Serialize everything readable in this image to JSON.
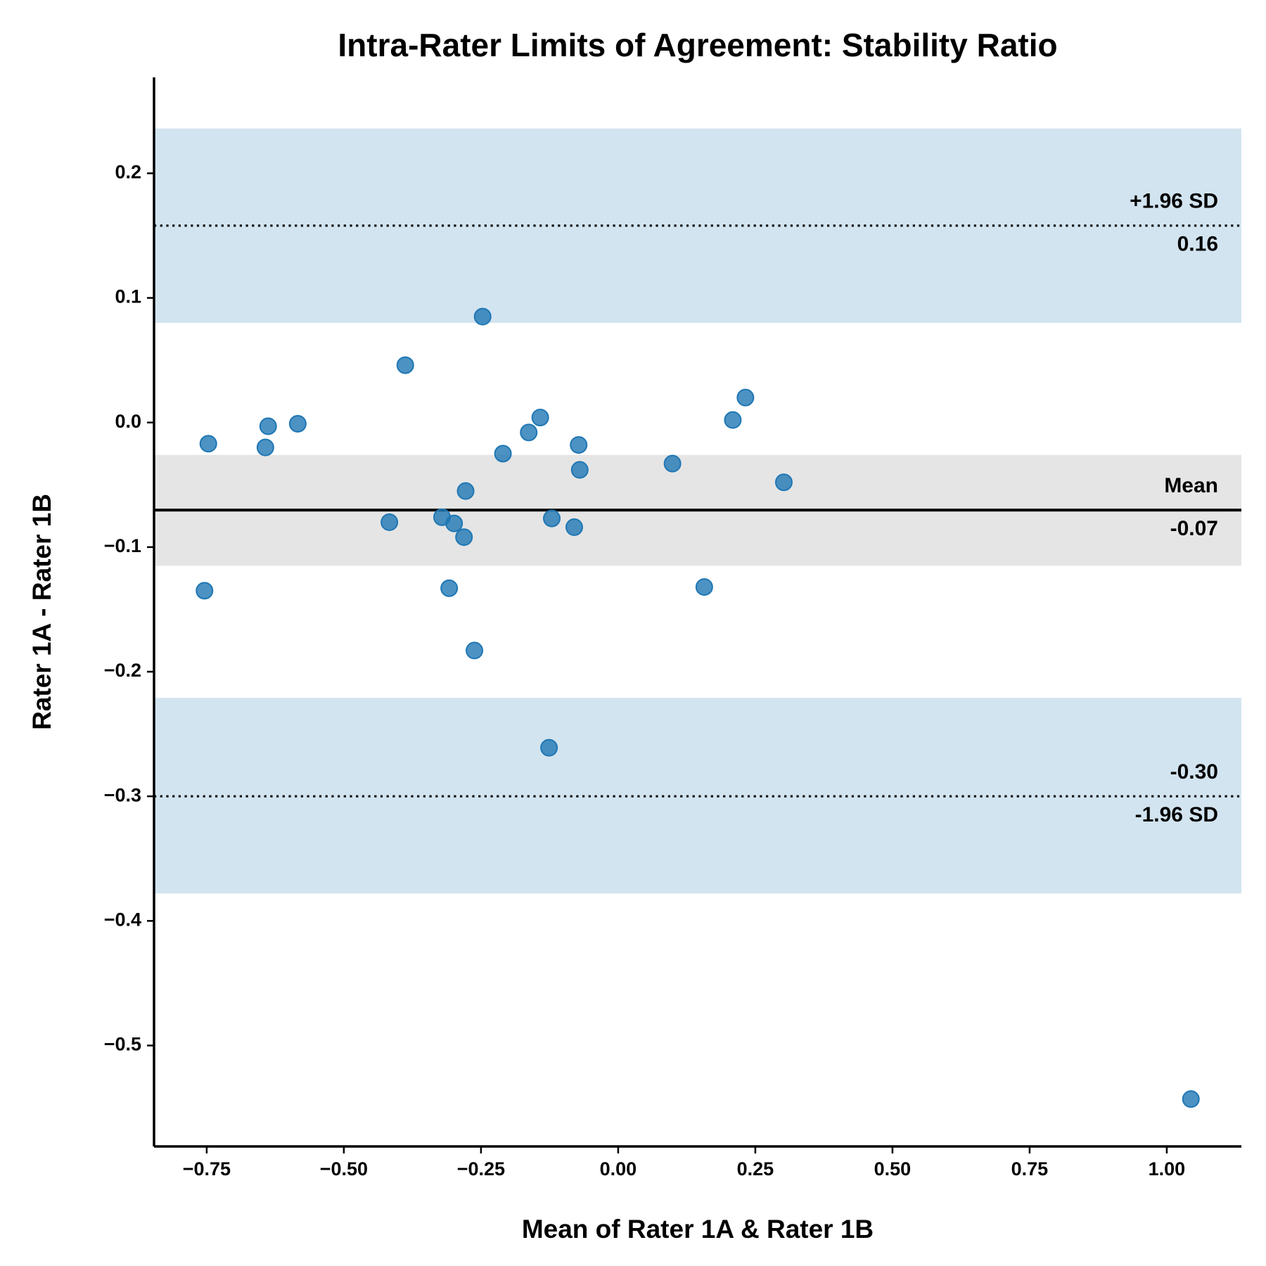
{
  "chart_data": {
    "type": "scatter",
    "title": "Intra-Rater Limits of Agreement: Stability Ratio",
    "xlabel": "Mean of Rater 1A & Rater 1B",
    "ylabel": "Rater 1A - Rater 1B",
    "color": "#1f77b4",
    "band_color": "#1f77b4",
    "mean_band_color": "#e5e5e5",
    "xlim": [
      -0.846,
      1.136
    ],
    "ylim": [
      -0.581,
      0.277
    ],
    "xticks": [
      {
        "value": -0.75,
        "label": "−0.75"
      },
      {
        "value": -0.5,
        "label": "−0.50"
      },
      {
        "value": -0.25,
        "label": "−0.25"
      },
      {
        "value": 0,
        "label": "0.00"
      },
      0.25,
      {
        "value": 0.5,
        "label": "0.50"
      },
      0.75,
      {
        "value": 1,
        "label": "1.00"
      }
    ],
    "yticks": [
      {
        "value": -0.5,
        "label": "−0.5"
      },
      {
        "value": -0.4,
        "label": "−0.4"
      },
      {
        "value": -0.3,
        "label": "−0.3"
      },
      {
        "value": -0.2,
        "label": "−0.2"
      },
      {
        "value": -0.1,
        "label": "−0.1"
      },
      {
        "value": 0,
        "label": "0.0"
      },
      0.1,
      0.2
    ],
    "x": [
      -0.747,
      -0.754,
      -0.638,
      -0.643,
      -0.584,
      -0.417,
      -0.388,
      -0.247,
      -0.321,
      -0.299,
      -0.308,
      -0.278,
      -0.281,
      -0.262,
      -0.21,
      -0.163,
      -0.142,
      -0.121,
      -0.126,
      -0.08,
      -0.072,
      -0.07,
      0.099,
      0.157,
      0.209,
      0.232,
      0.302,
      1.044
    ],
    "values": [
      -0.017,
      -0.135,
      -0.003,
      -0.02,
      -0.001,
      -0.08,
      0.046,
      0.085,
      -0.076,
      -0.081,
      -0.133,
      -0.055,
      -0.092,
      -0.183,
      -0.025,
      -0.008,
      0.004,
      -0.077,
      -0.261,
      -0.084,
      -0.018,
      -0.038,
      -0.033,
      -0.132,
      0.002,
      0.02,
      -0.048,
      -0.543
    ],
    "lines": [
      {
        "name": "+1.96 SD",
        "value": 0.158,
        "label": "0.16",
        "style": "dotted",
        "band": [
          0.08,
          0.236
        ]
      },
      {
        "name": "Mean",
        "value": -0.0703,
        "label": "-0.07",
        "style": "solid",
        "band": [
          -0.115,
          -0.026
        ]
      },
      {
        "name": "-1.96 SD",
        "value": -0.3,
        "label": "-0.30",
        "style": "dotted",
        "band": [
          -0.378,
          -0.221
        ]
      }
    ]
  }
}
